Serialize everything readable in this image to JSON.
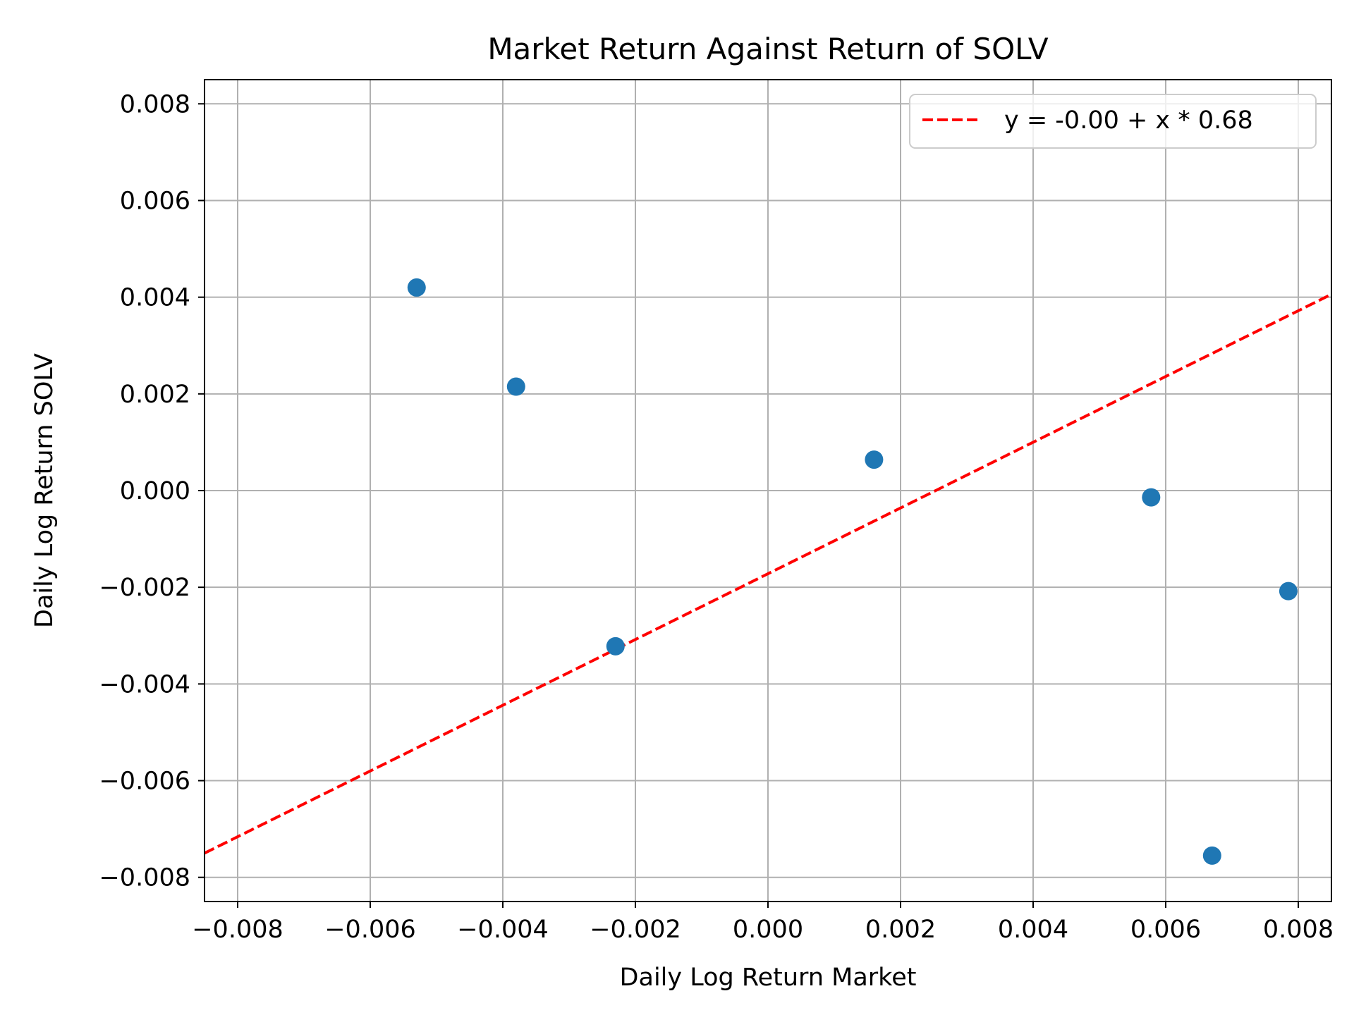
{
  "chart_data": {
    "type": "scatter",
    "title": "Market Return Against Return of SOLV",
    "xlabel": "Daily Log Return Market",
    "ylabel": "Daily Log Return SOLV",
    "xlim": [
      -0.0085,
      0.0085
    ],
    "ylim": [
      -0.0085,
      0.0085
    ],
    "xticks": [
      -0.008,
      -0.006,
      -0.004,
      -0.002,
      0.0,
      0.002,
      0.004,
      0.006,
      0.008
    ],
    "yticks": [
      -0.008,
      -0.006,
      -0.004,
      -0.002,
      0.0,
      0.002,
      0.004,
      0.006,
      0.008
    ],
    "xtick_labels": [
      "−0.008",
      "−0.006",
      "−0.004",
      "−0.002",
      "0.000",
      "0.002",
      "0.004",
      "0.006",
      "0.008"
    ],
    "ytick_labels": [
      "−0.008",
      "−0.006",
      "−0.004",
      "−0.002",
      "0.000",
      "0.002",
      "0.004",
      "0.006",
      "0.008"
    ],
    "grid": true,
    "legend": "upper-right",
    "series": [
      {
        "type": "scatter",
        "color": "#1f77b4",
        "points": [
          {
            "x": -0.0053,
            "y": 0.0042
          },
          {
            "x": -0.0038,
            "y": 0.00215
          },
          {
            "x": -0.0023,
            "y": -0.00322
          },
          {
            "x": 0.0016,
            "y": 0.00064
          },
          {
            "x": 0.00578,
            "y": -0.00014
          },
          {
            "x": 0.0067,
            "y": -0.00755
          },
          {
            "x": 0.00785,
            "y": -0.00208
          }
        ]
      },
      {
        "type": "line",
        "name": "y = -0.00 + x * 0.68",
        "style": "dashed",
        "color": "#ff0000",
        "intercept": -0.00172,
        "slope": 0.68
      }
    ]
  }
}
